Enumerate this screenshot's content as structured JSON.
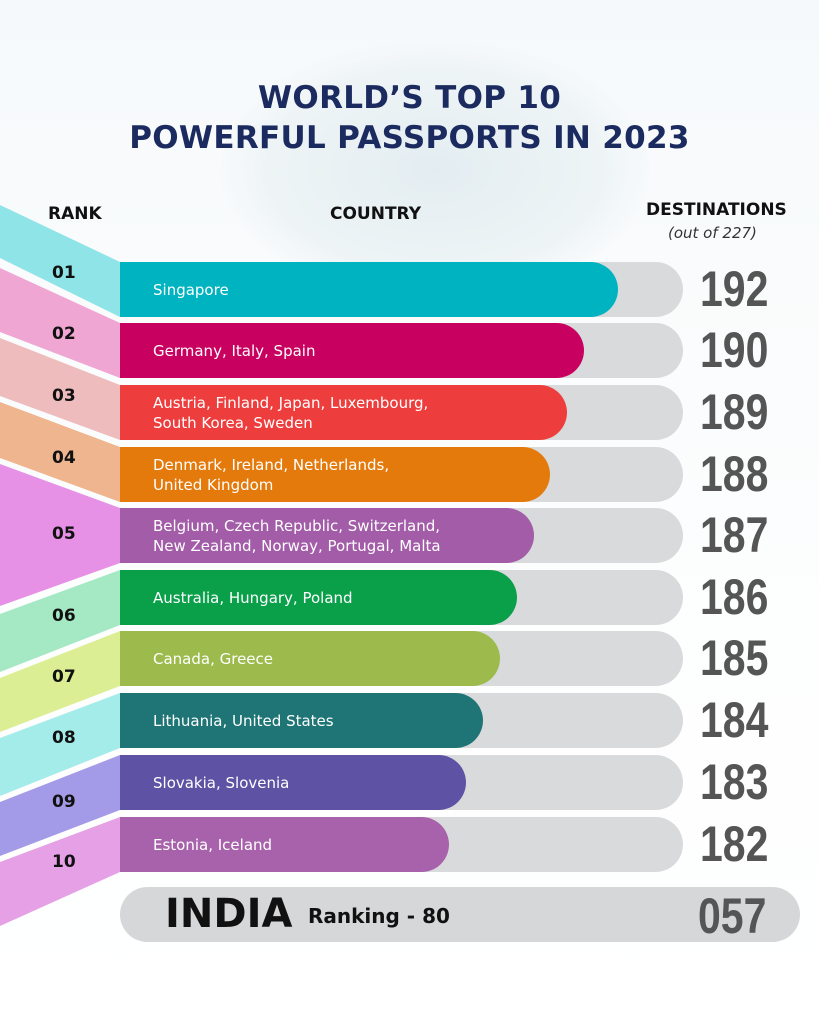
{
  "title_line1": "WORLD’S TOP 10",
  "title_line2": "POWERFUL PASSPORTS IN 2023",
  "headers": {
    "rank": "RANK",
    "country": "COUNTRY",
    "destinations": "DESTINATIONS",
    "destinations_sub": "(out of 227)"
  },
  "chart_data": {
    "type": "bar",
    "title": "WORLD’S TOP 10 POWERFUL PASSPORTS IN 2023",
    "ylabel": "DESTINATIONS (out of 227)",
    "categories": [
      "01",
      "02",
      "03",
      "04",
      "05",
      "06",
      "07",
      "08",
      "09",
      "10"
    ],
    "countries": [
      "Singapore",
      "Germany, Italy, Spain",
      "Austria, Finland, Japan, Luxembourg,\nSouth Korea, Sweden",
      "Denmark, Ireland, Netherlands,\nUnited Kingdom",
      "Belgium, Czech Republic, Switzerland,\nNew Zealand, Norway, Portugal, Malta",
      "Australia, Hungary, Poland",
      "Canada, Greece",
      "Lithuania, United States",
      "Slovakia, Slovenia",
      "Estonia, Iceland"
    ],
    "values": [
      192,
      190,
      189,
      188,
      187,
      186,
      185,
      184,
      183,
      182
    ],
    "value_labels": [
      "192",
      "190",
      "189",
      "188",
      "187",
      "186",
      "185",
      "184",
      "183",
      "182"
    ],
    "colors": [
      "#00b3c1",
      "#c8005f",
      "#ee3d3d",
      "#e57a0c",
      "#a25ca8",
      "#0aa04a",
      "#9dbb4c",
      "#1f7575",
      "#5e52a4",
      "#a762ab"
    ],
    "ribbon_colors": [
      "#8ee4e6",
      "#f0a6d2",
      "#eebcbc",
      "#efb58f",
      "#e690e6",
      "#a5e8c4",
      "#dcee93",
      "#a4ece9",
      "#a49be8",
      "#e6a0e6"
    ]
  },
  "india": {
    "name": "INDIA",
    "ranking": "Ranking - 80",
    "destinations": "057"
  }
}
